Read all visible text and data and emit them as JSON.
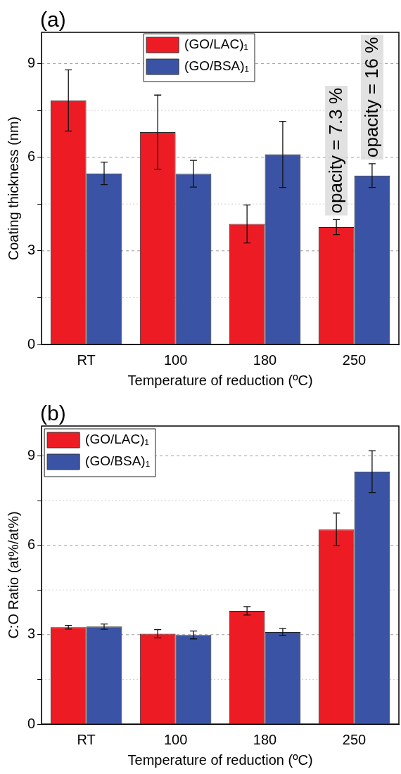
{
  "chart_data": [
    {
      "type": "bar",
      "title": "(a)",
      "xlabel": "Temperature of reduction (ºC)",
      "ylabel": "Coating thickness (nm)",
      "categories": [
        "RT",
        "100",
        "180",
        "250"
      ],
      "series": [
        {
          "name": "(GO/LAC)₁",
          "color": "#ed1c24",
          "values": [
            7.82,
            6.8,
            3.86,
            3.76
          ],
          "errors": [
            0.98,
            1.19,
            0.61,
            0.24
          ]
        },
        {
          "name": "(GO/BSA)₁",
          "color": "#3a53a4",
          "values": [
            5.48,
            5.47,
            6.09,
            5.41
          ],
          "errors": [
            0.36,
            0.43,
            1.06,
            0.38
          ]
        }
      ],
      "ylim": [
        0,
        10
      ],
      "yticks": [
        0,
        {
          "value": 1.5,
          "label": null
        },
        3,
        {
          "value": 4.5,
          "label": null
        },
        6,
        {
          "value": 7.5,
          "label": null
        },
        9
      ],
      "grid": "y",
      "legend": "top",
      "annotations": [
        {
          "text": "opacity = 7.3 %",
          "x": "250",
          "y": 3.76
        },
        {
          "text": "opacity = 16 %",
          "x": "250",
          "y": 5.41
        }
      ]
    },
    {
      "type": "bar",
      "title": "(b)",
      "xlabel": "Temperature of reduction (ºC)",
      "ylabel": "C:O Ratio (at%/at%)",
      "categories": [
        "RT",
        "100",
        "180",
        "250"
      ],
      "series": [
        {
          "name": "(GO/LAC)₁",
          "color": "#ed1c24",
          "values": [
            3.25,
            3.03,
            3.8,
            6.53
          ],
          "errors": [
            0.06,
            0.14,
            0.14,
            0.55
          ]
        },
        {
          "name": "(GO/BSA)₁",
          "color": "#3a53a4",
          "values": [
            3.27,
            2.99,
            3.09,
            8.47
          ],
          "errors": [
            0.09,
            0.13,
            0.12,
            0.7
          ]
        }
      ],
      "ylim": [
        0,
        10
      ],
      "yticks": [
        0,
        {
          "value": 1.5,
          "label": null
        },
        3,
        {
          "value": 4.5,
          "label": null
        },
        6,
        {
          "value": 7.5,
          "label": null
        },
        9
      ],
      "grid": "y",
      "legend": "top left"
    }
  ]
}
